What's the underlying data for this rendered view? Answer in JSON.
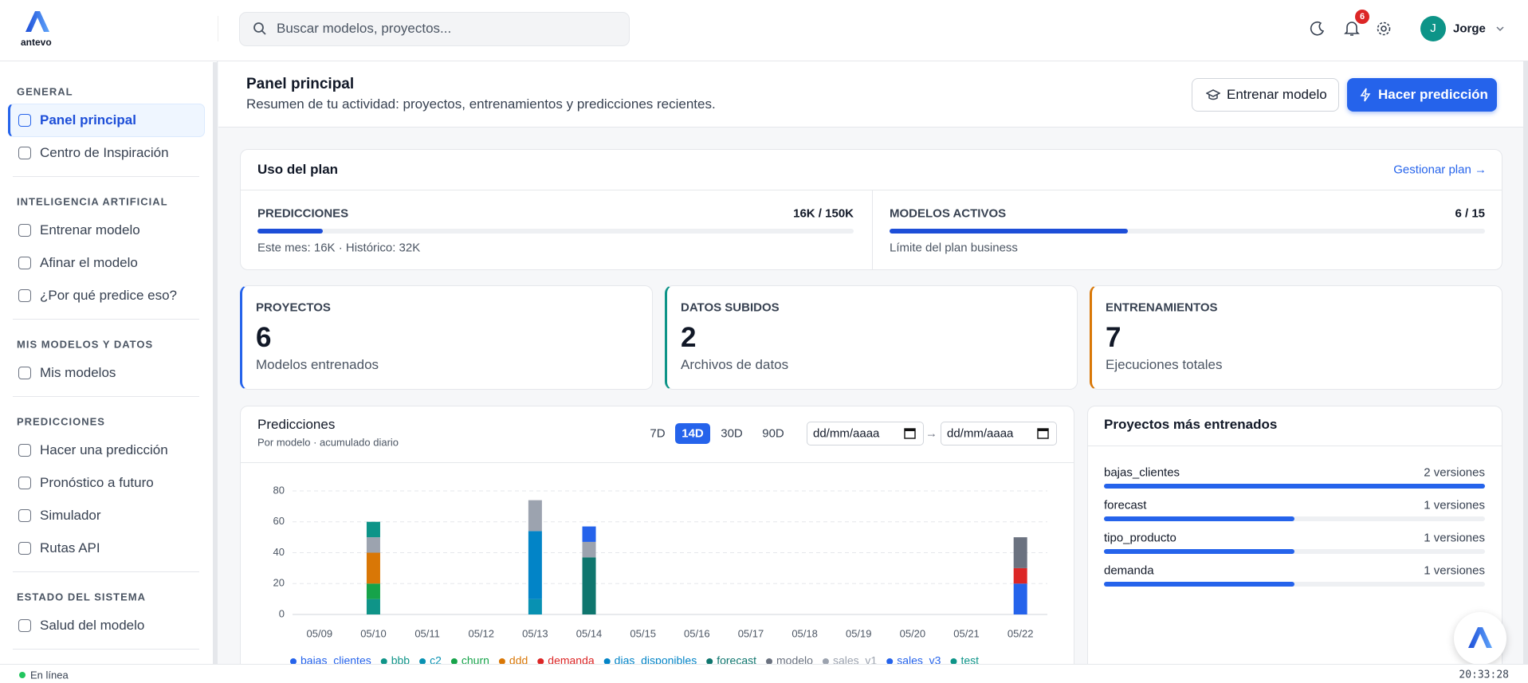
{
  "header": {
    "logo": "antevo",
    "search_placeholder": "Buscar modelos, proyectos...",
    "notifications": "6",
    "avatar": "J",
    "user": "Jorge"
  },
  "sidebar": {
    "active": "Panel principal",
    "sections": [
      {
        "title": "GENERAL",
        "items": [
          "Panel principal",
          "Centro de Inspiración"
        ]
      },
      {
        "title": "INTELIGENCIA ARTIFICIAL",
        "items": [
          "Entrenar modelo",
          "Afinar el modelo",
          "¿Por qué predice eso?"
        ]
      },
      {
        "title": "MIS MODELOS Y DATOS",
        "items": [
          "Mis modelos"
        ]
      },
      {
        "title": "PREDICCIONES",
        "items": [
          "Hacer una predicción",
          "Pronóstico a futuro",
          "Simulador",
          "Rutas API"
        ]
      },
      {
        "title": "ESTADO DEL SISTEMA",
        "items": [
          "Salud del modelo"
        ]
      }
    ]
  },
  "page": {
    "title": "Panel principal",
    "subtitle": "Resumen de tu actividad: proyectos, entrenamientos y predicciones recientes.",
    "buttons": [
      "Entrenar modelo",
      "Hacer predicción"
    ]
  },
  "plan": {
    "title": "Uso del plan",
    "link": "Gestionar plan →",
    "metrics": [
      {
        "label": "PREDICCIONES",
        "value": "16K / 150K",
        "note": "Este mes: 16K · Histórico: 32K"
      },
      {
        "label": "MODELOS ACTIVOS",
        "value": "6 / 15",
        "note": "Límite del plan business"
      }
    ]
  },
  "stats": [
    {
      "label": "PROYECTOS",
      "value": 6,
      "note": "Modelos entrenados",
      "color": "#2563eb"
    },
    {
      "label": "DATOS SUBIDOS",
      "value": 2,
      "note": "Archivos de datos",
      "color": "#0d9488"
    },
    {
      "label": "ENTRENAMIENTOS",
      "value": 7,
      "note": "Ejecuciones totales",
      "color": "#d97706"
    }
  ],
  "chart_data": [
    {
      "type": "stacked-bar",
      "title": "Predicciones",
      "subtitle": "Por modelo · acumulado diario",
      "ranges": [
        "7D",
        "14D",
        "30D",
        "90D"
      ],
      "selected_range": "14D",
      "date_from": "dd/mm/aaaa",
      "date_separator": "→",
      "date_to": "dd/mm/aaaa",
      "categories": [
        "05/09",
        "05/10",
        "05/11",
        "05/12",
        "05/13",
        "05/14",
        "05/15",
        "05/16",
        "05/17",
        "05/18",
        "05/19",
        "05/20",
        "05/21",
        "05/22"
      ],
      "series": [
        {
          "name": "bajas_clientes",
          "color": "#2563eb",
          "values": [
            0,
            0,
            0,
            0,
            0,
            0,
            0,
            0,
            0,
            0,
            0,
            0,
            0,
            20
          ]
        },
        {
          "name": "bbb",
          "color": "#0f9488",
          "values": [
            0,
            10,
            0,
            0,
            0,
            0,
            0,
            0,
            0,
            0,
            0,
            0,
            0,
            0
          ]
        },
        {
          "name": "c2",
          "color": "#0891b2",
          "values": [
            0,
            0,
            0,
            0,
            10,
            0,
            0,
            0,
            0,
            0,
            0,
            0,
            0,
            0
          ]
        },
        {
          "name": "churn",
          "color": "#16a34a",
          "values": [
            0,
            10,
            0,
            0,
            0,
            0,
            0,
            0,
            0,
            0,
            0,
            0,
            0,
            0
          ]
        },
        {
          "name": "ddd",
          "color": "#d97706",
          "values": [
            0,
            20,
            0,
            0,
            0,
            0,
            0,
            0,
            0,
            0,
            0,
            0,
            0,
            0
          ]
        },
        {
          "name": "demanda",
          "color": "#dc2626",
          "values": [
            0,
            0,
            0,
            0,
            0,
            0,
            0,
            0,
            0,
            0,
            0,
            0,
            0,
            10
          ]
        },
        {
          "name": "dias_disponibles",
          "color": "#0284c7",
          "values": [
            0,
            0,
            0,
            0,
            44,
            0,
            0,
            0,
            0,
            0,
            0,
            0,
            0,
            0
          ]
        },
        {
          "name": "forecast",
          "color": "#0f766e",
          "values": [
            0,
            0,
            0,
            0,
            0,
            37,
            0,
            0,
            0,
            0,
            0,
            0,
            0,
            0
          ]
        },
        {
          "name": "modelo",
          "color": "#6b7280",
          "values": [
            0,
            0,
            0,
            0,
            0,
            0,
            0,
            0,
            0,
            0,
            0,
            0,
            0,
            20
          ]
        },
        {
          "name": "sales_v1",
          "color": "#9ca3af",
          "values": [
            0,
            10,
            0,
            0,
            20,
            10,
            0,
            0,
            0,
            0,
            0,
            0,
            0,
            0
          ]
        },
        {
          "name": "sales_v3",
          "color": "#2563eb",
          "values": [
            0,
            0,
            0,
            0,
            0,
            10,
            0,
            0,
            0,
            0,
            0,
            0,
            0,
            0
          ]
        },
        {
          "name": "test",
          "color": "#0d9488",
          "values": [
            0,
            10,
            0,
            0,
            0,
            0,
            0,
            0,
            0,
            0,
            0,
            0,
            0,
            0
          ]
        }
      ],
      "ylim": [
        0,
        80
      ],
      "yticks": [
        0,
        20,
        40,
        60,
        80
      ],
      "grid": true,
      "legend": "bottom"
    },
    {
      "type": "progress-list",
      "title": "Proyectos más entrenados",
      "categories": [
        "bajas_clientes",
        "forecast",
        "tipo_producto",
        "demanda"
      ],
      "values": [
        2,
        1,
        1,
        1
      ],
      "value_labels": [
        "2 versiones",
        "1 versiones",
        "1 versiones",
        "1 versiones"
      ],
      "color": "#2563eb"
    }
  ],
  "status": {
    "text": "En línea",
    "time": "20:33:28"
  }
}
